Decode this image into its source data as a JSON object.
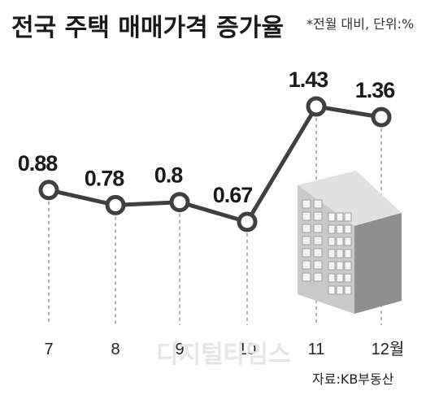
{
  "title": "전국 주택 매매가격 증가율",
  "subtitle": "*전월 대비, 단위:%",
  "source": "자료:KB부동산",
  "watermark": "디지털타임스",
  "colors": {
    "line": "#404040",
    "marker_fill": "#ffffff",
    "marker_stroke": "#404040",
    "dashes": "#9a9a9a",
    "building": "#b5b5b5"
  },
  "chart_data": {
    "type": "line",
    "categories": [
      "7",
      "8",
      "9",
      "10",
      "11",
      "12월"
    ],
    "values": [
      0.88,
      0.78,
      0.8,
      0.67,
      1.43,
      1.36
    ],
    "value_labels": [
      "0.88",
      "0.78",
      "0.8",
      "0.67",
      "1.43",
      "1.36"
    ],
    "title": "전국 주택 매매가격 증가율",
    "xlabel": "",
    "ylabel": "",
    "grid": false,
    "legend": "none"
  }
}
